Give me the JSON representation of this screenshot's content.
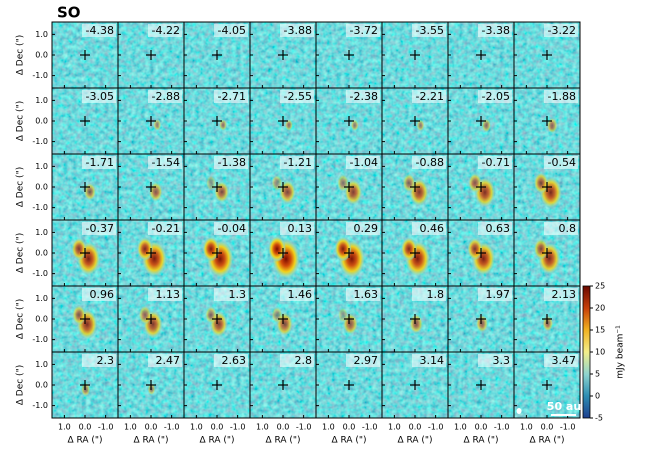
{
  "chart_data": {
    "type": "channel-map",
    "title": "SO",
    "channels": [
      -4.38,
      -4.22,
      -4.05,
      -3.88,
      -3.72,
      -3.55,
      -3.38,
      -3.22,
      -3.05,
      -2.88,
      -2.71,
      -2.55,
      -2.38,
      -2.21,
      -2.05,
      -1.88,
      -1.71,
      -1.54,
      -1.38,
      -1.21,
      -1.04,
      -0.88,
      -0.71,
      -0.54,
      -0.37,
      -0.21,
      -0.04,
      0.13,
      0.29,
      0.46,
      0.63,
      0.8,
      0.96,
      1.13,
      1.3,
      1.46,
      1.63,
      1.8,
      1.97,
      2.13,
      2.3,
      2.47,
      2.63,
      2.8,
      2.97,
      3.14,
      3.3,
      3.47
    ],
    "x_label": "Δ RA (\")",
    "y_label": "Δ Dec (\")",
    "xlim": [
      1.6,
      -1.6
    ],
    "ylim": [
      -1.6,
      1.6
    ],
    "xticks": [
      {
        "value": 1,
        "label": "1.0"
      },
      {
        "value": 0,
        "label": "0.0"
      },
      {
        "value": -1,
        "label": "-1.0"
      }
    ],
    "yticks": [
      {
        "value": 1,
        "label": "1.0"
      },
      {
        "value": 0,
        "label": "0.0"
      },
      {
        "value": -1,
        "label": "-1.0"
      }
    ],
    "colorbar": {
      "label": "mJy beam⁻¹",
      "lim": [
        -5,
        25
      ],
      "ticks": [
        -5,
        0,
        5,
        10,
        15,
        20,
        25
      ]
    },
    "scale_bar": "50 au"
  }
}
